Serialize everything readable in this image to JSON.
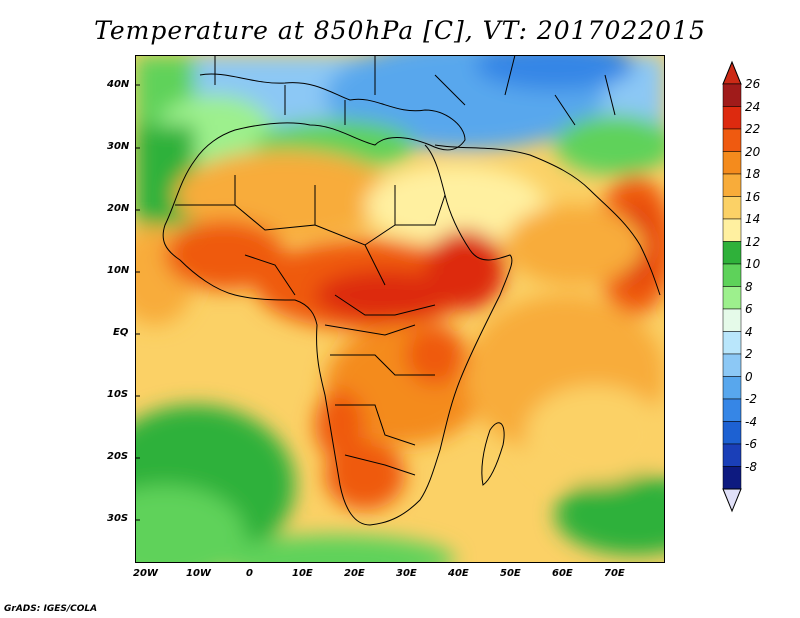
{
  "title": "Temperature at 850hPa [C], VT: 2017022015",
  "credit": "GrADS: IGES/COLA",
  "lat_labels": [
    "40N",
    "30N",
    "20N",
    "10N",
    "EQ",
    "10S",
    "20S",
    "30S"
  ],
  "lon_labels": [
    "20W",
    "10W",
    "0",
    "10E",
    "20E",
    "30E",
    "40E",
    "50E",
    "60E",
    "70E"
  ],
  "colorbar": {
    "labels": [
      "26",
      "24",
      "22",
      "20",
      "18",
      "16",
      "14",
      "12",
      "10",
      "8",
      "6",
      "4",
      "2",
      "0",
      "-2",
      "-4",
      "-6",
      "-8"
    ],
    "colors": [
      "#a01b1a",
      "#dd2a0f",
      "#ef5a10",
      "#f48b1d",
      "#f8ac3a",
      "#fbd166",
      "#fff0a0",
      "#2fb13a",
      "#5ed25a",
      "#9df08d",
      "#e5fae9",
      "#b9e6fb",
      "#8cc8f5",
      "#58a7ed",
      "#3686e6",
      "#1d61d2",
      "#1a3fb8",
      "#0d1a80"
    ],
    "max_arrow_color": "#cc2a16",
    "min_arrow_color": "#e0e0f8"
  },
  "map_colors": {
    "ocean_warm": "#fbd166",
    "sea_north": "#5ed25a",
    "europe_cold": "#8cc8f5",
    "land_hot": "#ef5a10",
    "land_very_hot": "#dd2a0f",
    "land_warm": "#f48b1d",
    "south_cool": "#2fb13a"
  }
}
